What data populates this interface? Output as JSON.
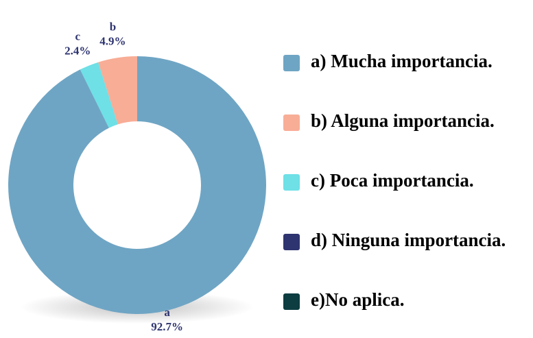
{
  "chart_data": {
    "type": "donut",
    "categories": [
      "a) Mucha importancia.",
      "b) Alguna importancia.",
      "c) Poca importancia.",
      "d) Ninguna importancia.",
      "e)No aplica."
    ],
    "slice_labels": [
      "a",
      "b",
      "c",
      null,
      null
    ],
    "values": [
      92.7,
      4.9,
      2.4,
      0,
      0
    ],
    "value_labels": [
      "92.7%",
      "4.9%",
      "2.4%",
      null,
      null
    ],
    "colors": [
      "#6fa5c4",
      "#f8ad96",
      "#6ee0e6",
      "#2e3470",
      "#0d3d40"
    ]
  }
}
